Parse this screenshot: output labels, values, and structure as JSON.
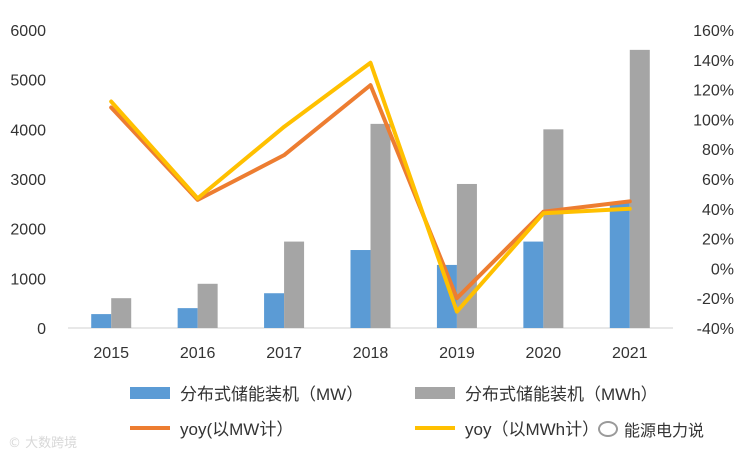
{
  "chart_data": {
    "type": "bar",
    "categories": [
      "2015",
      "2016",
      "2017",
      "2018",
      "2019",
      "2020",
      "2021"
    ],
    "series": [
      {
        "name": "分布式储能装机（MW）",
        "kind": "bar",
        "axis": "left",
        "color": "#5b9bd5",
        "values": [
          280,
          400,
          700,
          1570,
          1270,
          1740,
          2520
        ]
      },
      {
        "name": "分布式储能装机（MWh）",
        "kind": "bar",
        "axis": "left",
        "color": "#a5a5a5",
        "values": [
          600,
          890,
          1740,
          4110,
          2900,
          4000,
          5600
        ]
      },
      {
        "name": "yoy(以MW计）",
        "kind": "line",
        "axis": "right",
        "color": "#ed7d31",
        "values": [
          108,
          46,
          76,
          123,
          -20,
          38,
          45
        ]
      },
      {
        "name": "yoy（以MWh计）",
        "kind": "line",
        "axis": "right",
        "color": "#ffc000",
        "values": [
          112,
          47,
          95,
          138,
          -29,
          37,
          40
        ]
      }
    ],
    "left_axis": {
      "min": 0,
      "max": 6000,
      "step": 1000,
      "ticks": [
        "0",
        "1000",
        "2000",
        "3000",
        "4000",
        "5000",
        "6000"
      ]
    },
    "right_axis": {
      "min": -40,
      "max": 160,
      "step": 20,
      "ticks": [
        "-40%",
        "-20%",
        "0%",
        "20%",
        "40%",
        "60%",
        "80%",
        "100%",
        "120%",
        "140%",
        "160%"
      ]
    },
    "legend_position": "bottom",
    "grid": false
  },
  "legend": [
    {
      "label": "分布式储能装机（MW）",
      "color": "#5b9bd5",
      "kind": "bar"
    },
    {
      "label": "分布式储能装机（MWh）",
      "color": "#a5a5a5",
      "kind": "bar"
    },
    {
      "label": "yoy(以MW计）",
      "color": "#ed7d31",
      "kind": "line"
    },
    {
      "label": "yoy（以MWh计）",
      "color": "#ffc000",
      "kind": "line"
    }
  ],
  "watermarks": {
    "left": "© 大数跨境",
    "right": "能源电力说"
  }
}
